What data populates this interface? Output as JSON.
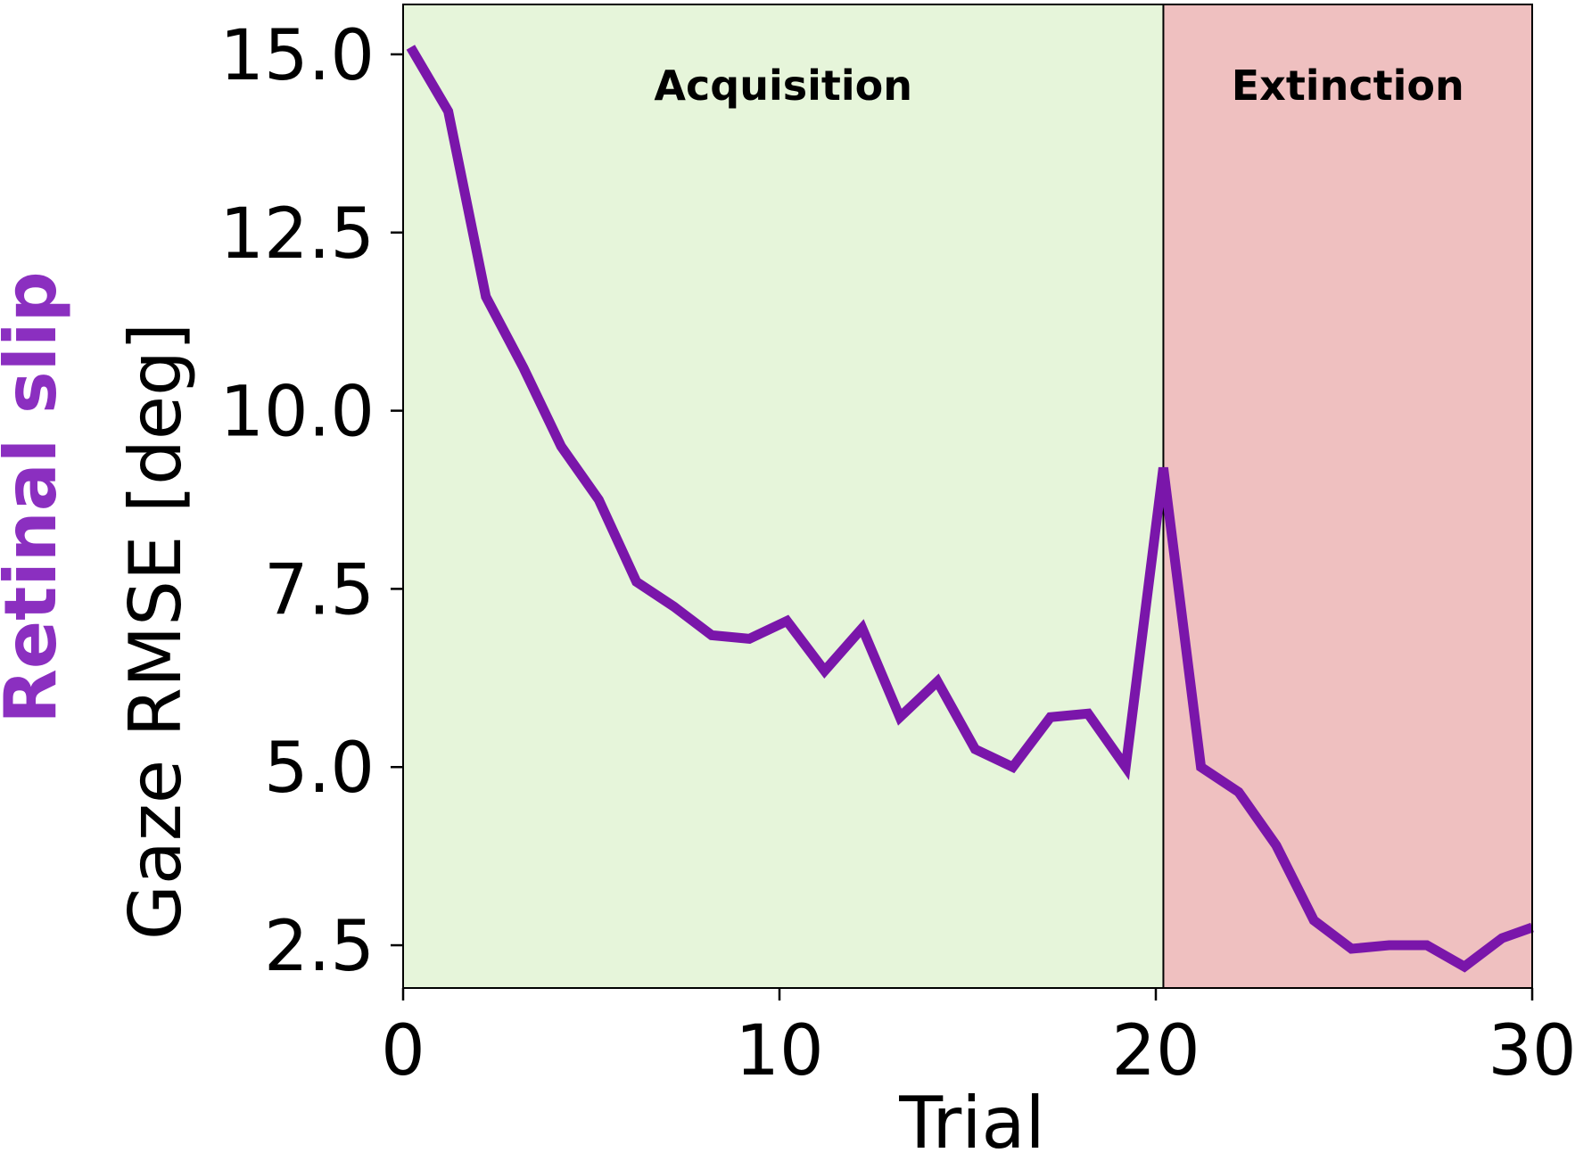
{
  "chart_data": {
    "type": "line",
    "xlabel": "Trial",
    "ylabel": "Gaze RMSE [deg]",
    "ylabel_top": "Retinal slip",
    "xlim": [
      0,
      30
    ],
    "ylim": [
      1.9,
      15.7
    ],
    "x_ticks": [
      0,
      10,
      20,
      30
    ],
    "y_ticks": [
      2.5,
      5.0,
      7.5,
      10.0,
      12.5,
      15.0
    ],
    "x_tick_labels": [
      "0",
      "10",
      "20",
      "30"
    ],
    "y_tick_labels": [
      "2.5",
      "5.0",
      "7.5",
      "10.0",
      "12.5",
      "15.0"
    ],
    "grid": false,
    "regions": [
      {
        "label": "Acquisition",
        "x_start": 0,
        "x_end": 20.2,
        "color": "#e6f5da"
      },
      {
        "label": "Extinction",
        "x_start": 20.2,
        "x_end": 30,
        "color": "#efc0c0"
      }
    ],
    "series": [
      {
        "color": "#7a16aa",
        "x": [
          0.2,
          1.2,
          2.2,
          3.2,
          4.2,
          5.2,
          6.2,
          7.2,
          8.2,
          9.2,
          10.2,
          11.2,
          12.2,
          13.2,
          14.2,
          15.2,
          16.2,
          17.2,
          18.2,
          19.2,
          20.2,
          21.2,
          22.2,
          23.2,
          24.2,
          25.2,
          26.2,
          27.2,
          28.2,
          29.2,
          30.0
        ],
        "y": [
          15.1,
          14.2,
          11.6,
          10.6,
          9.5,
          8.75,
          7.6,
          7.25,
          6.85,
          6.8,
          7.05,
          6.35,
          6.95,
          5.7,
          6.2,
          5.25,
          5.0,
          5.7,
          5.75,
          5.0,
          9.2,
          5.0,
          4.65,
          3.9,
          2.85,
          2.45,
          2.5,
          2.5,
          2.2,
          2.6,
          2.75
        ]
      }
    ],
    "colors": {
      "line": "#7a16aa",
      "ylabel_top": "#8b2fc0",
      "acquisition": "#e6f5da",
      "extinction": "#efc0c0",
      "axis": "#000000"
    }
  }
}
